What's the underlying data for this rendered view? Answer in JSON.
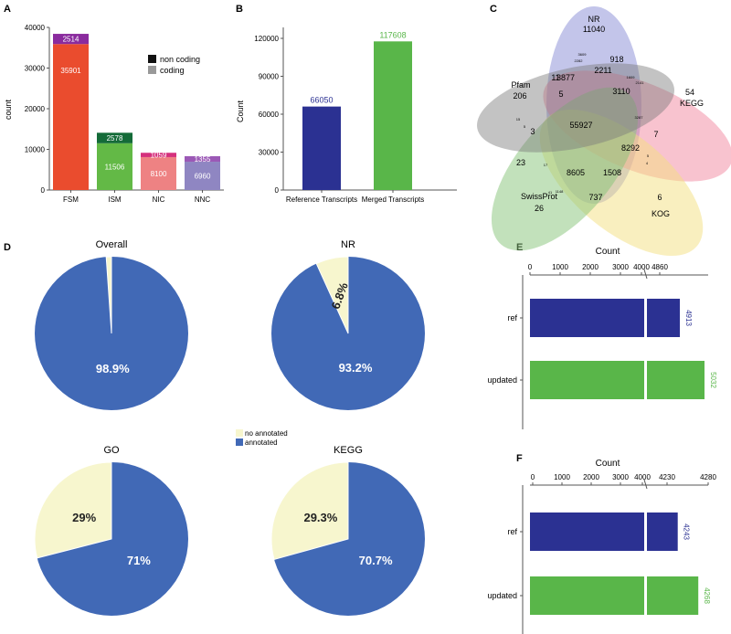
{
  "panel_labels": [
    "A",
    "B",
    "C",
    "D",
    "E",
    "F"
  ],
  "colors": {
    "fsm_coding": "#ea4c2e",
    "fsm_noncoding": "#8a2b9e",
    "ism_coding": "#63b946",
    "ism_noncoding": "#146b38",
    "nic_coding": "#ee8283",
    "nic_noncoding": "#d5307c",
    "nnc_coding": "#8f86c2",
    "nnc_noncoding": "#9b59b6",
    "blue": "#2b3192",
    "green": "#59b649",
    "pie_annotated": "#4169b6",
    "pie_not": "#f7f6ce"
  },
  "chart_data": [
    {
      "id": "A",
      "type": "bar",
      "title": "",
      "xlabel": "",
      "ylabel": "count",
      "ylim": [
        0,
        40000
      ],
      "yticks": [
        0,
        10000,
        20000,
        30000,
        40000
      ],
      "categories": [
        "FSM",
        "ISM",
        "NIC",
        "NNC"
      ],
      "series": [
        {
          "name": "coding",
          "values": [
            35901,
            11506,
            8100,
            6960
          ],
          "labels": [
            "35901",
            "11506",
            "8100",
            "6960"
          ]
        },
        {
          "name": "non coding",
          "values": [
            2514,
            2578,
            1059,
            1355
          ],
          "labels": [
            "2514",
            "2578",
            "1059",
            "1355"
          ]
        }
      ],
      "legend": {
        "entries": [
          "non coding",
          "coding"
        ],
        "swatches": [
          "#111111",
          "#999999"
        ],
        "position": "top-right"
      }
    },
    {
      "id": "B",
      "type": "bar",
      "ylabel": "Count",
      "ylim": [
        0,
        120000
      ],
      "yticks": [
        0,
        30000,
        60000,
        90000,
        120000
      ],
      "categories": [
        "Reference Transcripts",
        "Merged Transcripts"
      ],
      "values": [
        66050,
        117608
      ],
      "labels": [
        "66050",
        "117608"
      ]
    },
    {
      "id": "C",
      "type": "venn",
      "sets": [
        {
          "name": "NR",
          "unique": "11040"
        },
        {
          "name": "KEGG",
          "unique": "54"
        },
        {
          "name": "KOG",
          "unique": "6"
        },
        {
          "name": "SwissProt",
          "unique": "26"
        },
        {
          "name": "Pfam",
          "unique": "206"
        }
      ],
      "region_values": [
        "918",
        "3877",
        "2211",
        "3110",
        "11",
        "5",
        "55927",
        "3",
        "7",
        "8292",
        "23",
        "8605",
        "1508",
        "737",
        "3609",
        "2282",
        "1609",
        "2141",
        "3287",
        "17",
        "41",
        "1148",
        "5",
        "15",
        "5",
        "4"
      ]
    },
    {
      "id": "D",
      "type": "pie",
      "legend": {
        "entries": [
          "no annotated",
          "annotated"
        ],
        "position": "center"
      },
      "pies": [
        {
          "title": "Overall",
          "annotated": 98.9,
          "not_annotated": 1.1,
          "label_annotated": "98.9%",
          "label_not": ""
        },
        {
          "title": "NR",
          "annotated": 93.2,
          "not_annotated": 6.8,
          "label_annotated": "93.2%",
          "label_not": "6.8%"
        },
        {
          "title": "GO",
          "annotated": 71,
          "not_annotated": 29,
          "label_annotated": "71%",
          "label_not": "29%"
        },
        {
          "title": "KEGG",
          "annotated": 70.7,
          "not_annotated": 29.3,
          "label_annotated": "70.7%",
          "label_not": "29.3%"
        }
      ]
    },
    {
      "id": "E",
      "type": "bar",
      "orientation": "horizontal",
      "axis_break": true,
      "xlabel": "Count",
      "xticks": [
        "0",
        "1000",
        "2000",
        "3000",
        "4000",
        "4860"
      ],
      "categories": [
        "ref",
        "updated"
      ],
      "values": [
        4913,
        5032
      ],
      "labels": [
        "4913",
        "5032"
      ]
    },
    {
      "id": "F",
      "type": "bar",
      "orientation": "horizontal",
      "axis_break": true,
      "xlabel": "Count",
      "xticks": [
        "0",
        "1000",
        "2000",
        "3000",
        "4000",
        "4230",
        "4280"
      ],
      "categories": [
        "ref",
        "updated"
      ],
      "values": [
        4243,
        4268
      ],
      "labels": [
        "4243",
        "4268"
      ]
    }
  ]
}
